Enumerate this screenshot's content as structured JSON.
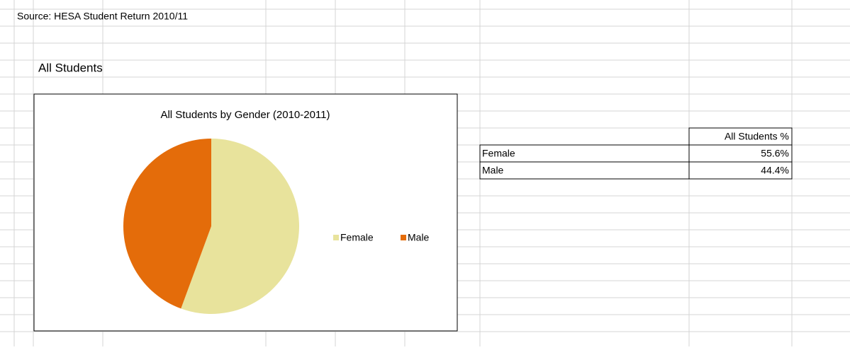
{
  "source": "Source: HESA Student Return 2010/11",
  "section_title": "All Students",
  "chart_data": {
    "type": "pie",
    "title": "All Students by Gender (2010-2011)",
    "categories": [
      "Female",
      "Male"
    ],
    "values": [
      55.6,
      44.4
    ],
    "colors": [
      "#e8e39c",
      "#e46c0a"
    ],
    "legend": "right"
  },
  "table": {
    "header": "All Students %",
    "rows": [
      [
        "Female",
        "55.6%"
      ],
      [
        "Male",
        "44.4%"
      ]
    ]
  }
}
